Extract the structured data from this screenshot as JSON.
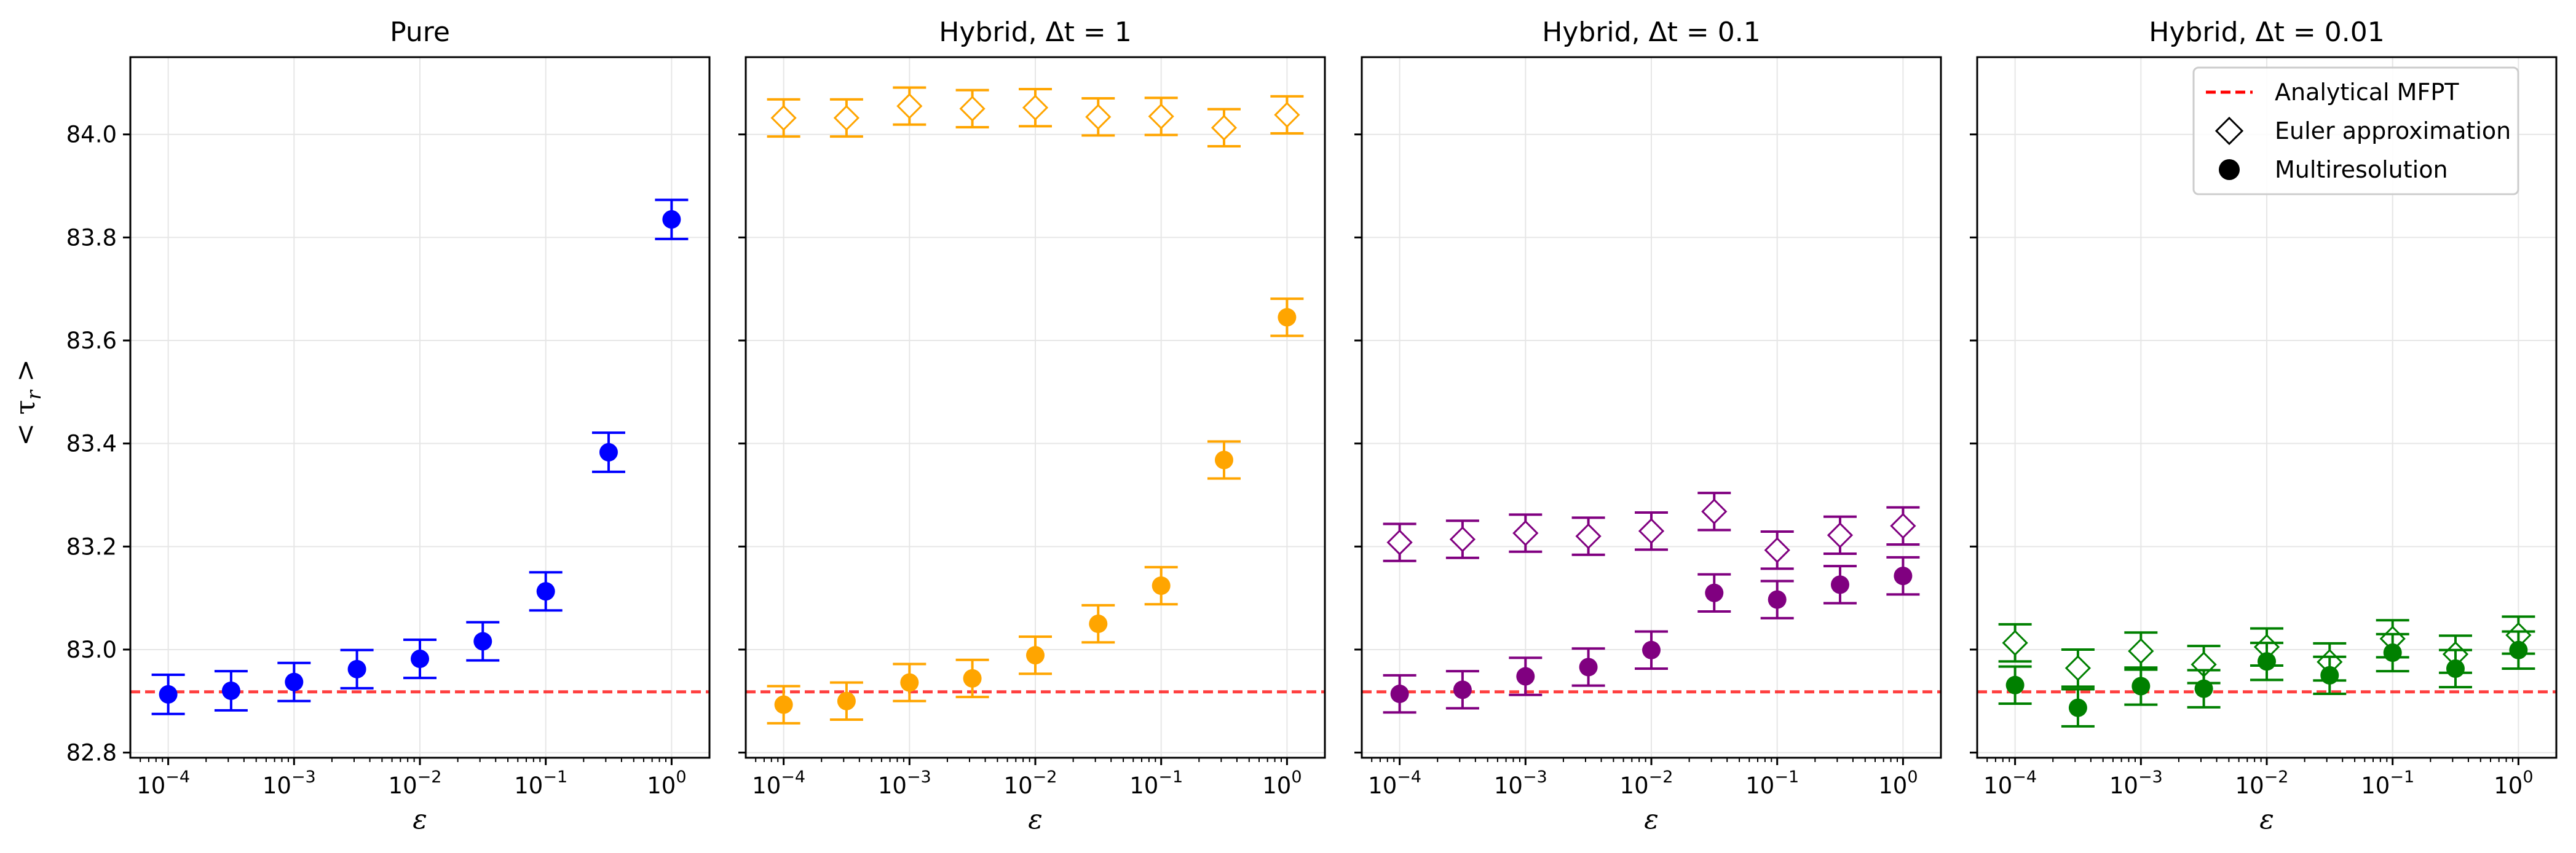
{
  "figure": {
    "ylabel": "< τ_r >",
    "ylabel_main": "< τ",
    "ylabel_sub": "r",
    "ylabel_close": " >",
    "reference_line": {
      "label": "Analytical MFPT",
      "value": 82.918,
      "color": "#ff0000"
    }
  },
  "legend": {
    "placement": "upper-right of last panel",
    "entries": [
      {
        "label": "Analytical MFPT",
        "marker": "dashed-line"
      },
      {
        "label": "Euler approximation",
        "marker": "open-diamond"
      },
      {
        "label": "Multiresolution",
        "marker": "filled-circle"
      }
    ]
  },
  "chart_data": [
    {
      "type": "scatter",
      "title": "Pure",
      "title_main": "Pure",
      "title_math": "",
      "xlabel": "ε",
      "ylabel": "< τ_r >",
      "xscale": "log",
      "xlim": [
        5e-05,
        2
      ],
      "ylim": [
        82.79,
        84.15
      ],
      "color": "#0000ff",
      "x_ticks": [
        {
          "base": "10",
          "exp": "−4"
        },
        {
          "base": "10",
          "exp": "−3"
        },
        {
          "base": "10",
          "exp": "−2"
        },
        {
          "base": "10",
          "exp": "−1"
        },
        {
          "base": "10",
          "exp": "0"
        }
      ],
      "y_ticks": [
        "82.8",
        "83.0",
        "83.2",
        "83.4",
        "83.6",
        "83.8",
        "84.0"
      ],
      "x": [
        0.0001,
        0.000316,
        0.001,
        0.00316,
        0.01,
        0.0316,
        0.1,
        0.316,
        1
      ],
      "series": [
        {
          "name": "Multiresolution",
          "marker": "filled-circle",
          "values": [
            82.913,
            82.92,
            82.937,
            82.962,
            82.982,
            83.016,
            83.113,
            83.383,
            83.835
          ],
          "errors": [
            0.038,
            0.038,
            0.037,
            0.037,
            0.037,
            0.037,
            0.037,
            0.038,
            0.038
          ]
        }
      ]
    },
    {
      "type": "scatter",
      "title": "Hybrid, Δt = 1",
      "title_main": "Hybrid, ",
      "title_math": "Δt = 1",
      "xlabel": "ε",
      "xscale": "log",
      "xlim": [
        5e-05,
        2
      ],
      "ylim": [
        82.79,
        84.15
      ],
      "color": "#ffa500",
      "x_ticks": [
        {
          "base": "10",
          "exp": "−4"
        },
        {
          "base": "10",
          "exp": "−3"
        },
        {
          "base": "10",
          "exp": "−2"
        },
        {
          "base": "10",
          "exp": "−1"
        },
        {
          "base": "10",
          "exp": "0"
        }
      ],
      "x": [
        0.0001,
        0.000316,
        0.001,
        0.00316,
        0.01,
        0.0316,
        0.1,
        0.316,
        1
      ],
      "series": [
        {
          "name": "Euler approximation",
          "marker": "open-diamond",
          "values": [
            84.032,
            84.032,
            84.055,
            84.05,
            84.052,
            84.034,
            84.035,
            84.013,
            84.038
          ],
          "errors": [
            0.036,
            0.036,
            0.036,
            0.036,
            0.036,
            0.036,
            0.036,
            0.036,
            0.036
          ]
        },
        {
          "name": "Multiresolution",
          "marker": "filled-circle",
          "values": [
            82.893,
            82.9,
            82.936,
            82.944,
            82.989,
            83.05,
            83.124,
            83.368,
            83.645
          ],
          "errors": [
            0.036,
            0.036,
            0.036,
            0.036,
            0.036,
            0.036,
            0.036,
            0.036,
            0.036
          ]
        }
      ]
    },
    {
      "type": "scatter",
      "title": "Hybrid, Δt = 0.1",
      "title_main": "Hybrid, ",
      "title_math": "Δt = 0.1",
      "xlabel": "ε",
      "xscale": "log",
      "xlim": [
        5e-05,
        2
      ],
      "ylim": [
        82.79,
        84.15
      ],
      "color": "#800080",
      "x_ticks": [
        {
          "base": "10",
          "exp": "−4"
        },
        {
          "base": "10",
          "exp": "−3"
        },
        {
          "base": "10",
          "exp": "−2"
        },
        {
          "base": "10",
          "exp": "−1"
        },
        {
          "base": "10",
          "exp": "0"
        }
      ],
      "x": [
        0.0001,
        0.000316,
        0.001,
        0.00316,
        0.01,
        0.0316,
        0.1,
        0.316,
        1
      ],
      "series": [
        {
          "name": "Euler approximation",
          "marker": "open-diamond",
          "values": [
            83.208,
            83.214,
            83.226,
            83.22,
            83.23,
            83.268,
            83.193,
            83.222,
            83.24
          ],
          "errors": [
            0.036,
            0.036,
            0.036,
            0.036,
            0.036,
            0.036,
            0.036,
            0.036,
            0.036
          ]
        },
        {
          "name": "Multiresolution",
          "marker": "filled-circle",
          "values": [
            82.914,
            82.922,
            82.948,
            82.966,
            82.999,
            83.11,
            83.097,
            83.126,
            83.143
          ],
          "errors": [
            0.036,
            0.036,
            0.036,
            0.036,
            0.036,
            0.036,
            0.036,
            0.036,
            0.036
          ]
        }
      ]
    },
    {
      "type": "scatter",
      "title": "Hybrid, Δt = 0.01",
      "title_main": "Hybrid, ",
      "title_math": "Δt = 0.01",
      "xlabel": "ε",
      "xscale": "log",
      "xlim": [
        5e-05,
        2
      ],
      "ylim": [
        82.79,
        84.15
      ],
      "color": "#008000",
      "x_ticks": [
        {
          "base": "10",
          "exp": "−4"
        },
        {
          "base": "10",
          "exp": "−3"
        },
        {
          "base": "10",
          "exp": "−2"
        },
        {
          "base": "10",
          "exp": "−1"
        },
        {
          "base": "10",
          "exp": "0"
        }
      ],
      "x": [
        0.0001,
        0.000316,
        0.001,
        0.00316,
        0.01,
        0.0316,
        0.1,
        0.316,
        1
      ],
      "series": [
        {
          "name": "Euler approximation",
          "marker": "open-diamond",
          "values": [
            83.013,
            82.964,
            82.997,
            82.971,
            83.005,
            82.976,
            83.021,
            82.991,
            83.028
          ],
          "errors": [
            0.036,
            0.036,
            0.036,
            0.036,
            0.036,
            0.036,
            0.036,
            0.036,
            0.036
          ]
        },
        {
          "name": "Multiresolution",
          "marker": "filled-circle",
          "values": [
            82.931,
            82.887,
            82.929,
            82.924,
            82.977,
            82.95,
            82.994,
            82.963,
            82.999
          ],
          "errors": [
            0.036,
            0.036,
            0.036,
            0.036,
            0.036,
            0.036,
            0.036,
            0.036,
            0.036
          ]
        }
      ]
    }
  ]
}
